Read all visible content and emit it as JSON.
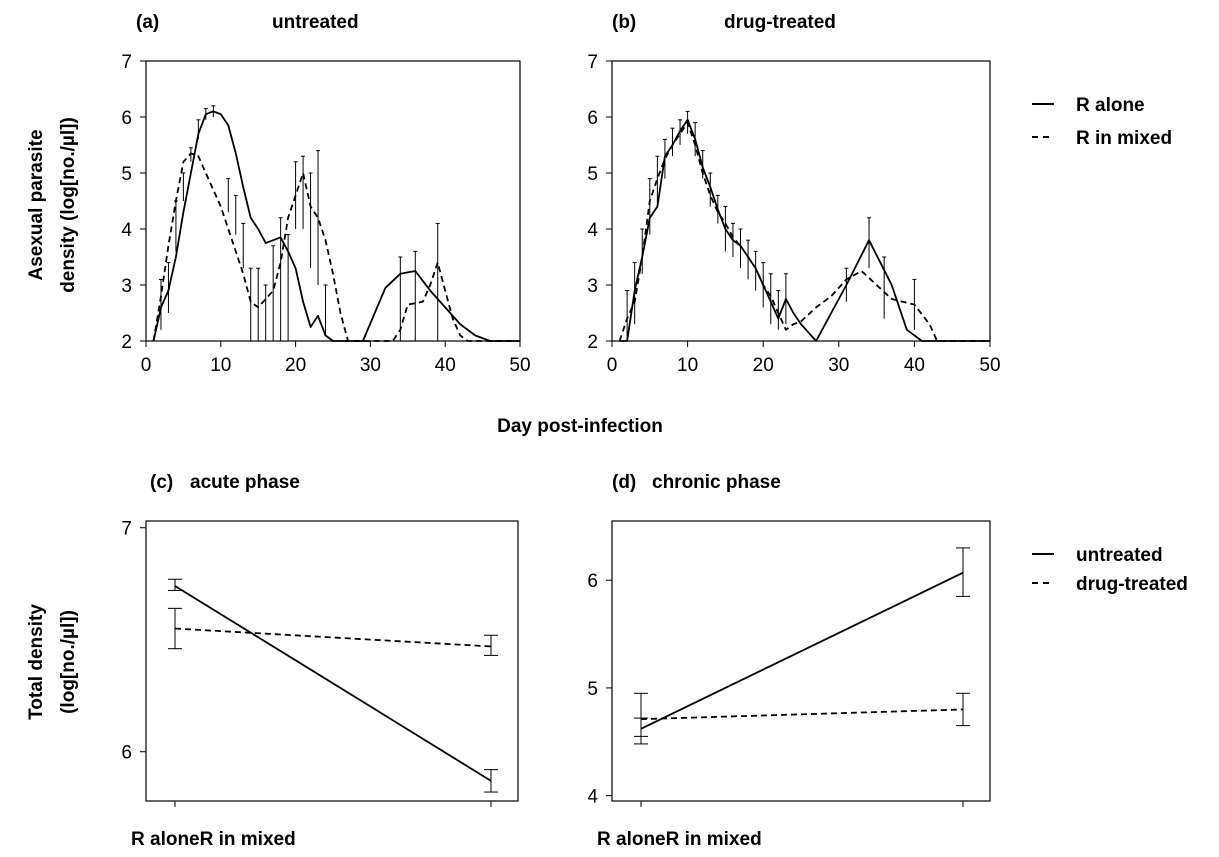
{
  "shared": {
    "top_xlabel": "Day post-infection",
    "top_ylabel_line1": "Asexual parasite",
    "top_ylabel_line2": "density (log[no./µl])",
    "bottom_ylabel_line1": "Total density",
    "bottom_ylabel_line2": "(log[no./µl])"
  },
  "legends": {
    "top": [
      {
        "label": "R alone",
        "style": "solid"
      },
      {
        "label": "R in mixed",
        "style": "dashed"
      }
    ],
    "bottom": [
      {
        "label": "untreated",
        "style": "solid"
      },
      {
        "label": "drug-treated",
        "style": "dashed"
      }
    ]
  },
  "chart_data": [
    {
      "id": "a",
      "type": "line",
      "panel_label": "(a)",
      "title": "untreated",
      "xlim": [
        0,
        50
      ],
      "ylim": [
        2,
        7
      ],
      "xticks": [
        0,
        10,
        20,
        30,
        40,
        50
      ],
      "yticks": [
        2,
        3,
        4,
        5,
        6,
        7
      ],
      "series": [
        {
          "name": "R alone",
          "style": "solid",
          "points": [
            [
              1,
              2.0
            ],
            [
              2,
              2.6
            ],
            [
              3,
              2.9
            ],
            [
              4,
              3.5
            ],
            [
              5,
              4.3
            ],
            [
              6,
              5.0
            ],
            [
              7,
              5.7
            ],
            [
              8,
              6.05
            ],
            [
              9,
              6.1
            ],
            [
              10,
              6.05
            ],
            [
              11,
              5.85
            ],
            [
              12,
              5.35
            ],
            [
              13,
              4.75
            ],
            [
              14,
              4.2
            ],
            [
              15,
              4.0
            ],
            [
              16,
              3.75
            ],
            [
              17,
              3.8
            ],
            [
              18,
              3.85
            ],
            [
              19,
              3.6
            ],
            [
              20,
              3.3
            ],
            [
              21,
              2.7
            ],
            [
              22,
              2.25
            ],
            [
              23,
              2.45
            ],
            [
              24,
              2.1
            ],
            [
              25,
              2.0
            ],
            [
              29,
              2.0
            ],
            [
              32,
              2.95
            ],
            [
              34,
              3.2
            ],
            [
              36,
              3.25
            ],
            [
              38,
              2.9
            ],
            [
              40,
              2.6
            ],
            [
              42,
              2.3
            ],
            [
              44,
              2.1
            ],
            [
              46,
              2.0
            ],
            [
              50,
              2.0
            ]
          ]
        },
        {
          "name": "R in mixed",
          "style": "dashed",
          "points": [
            [
              1,
              2.0
            ],
            [
              2,
              2.8
            ],
            [
              3,
              3.7
            ],
            [
              4,
              4.5
            ],
            [
              5,
              5.2
            ],
            [
              6,
              5.35
            ],
            [
              7,
              5.3
            ],
            [
              8,
              5.0
            ],
            [
              9,
              4.7
            ],
            [
              10,
              4.4
            ],
            [
              11,
              4.0
            ],
            [
              12,
              3.6
            ],
            [
              13,
              3.2
            ],
            [
              14,
              2.7
            ],
            [
              15,
              2.6
            ],
            [
              16,
              2.75
            ],
            [
              17,
              2.9
            ],
            [
              18,
              3.4
            ],
            [
              19,
              4.2
            ],
            [
              20,
              4.6
            ],
            [
              21,
              5.0
            ],
            [
              22,
              4.4
            ],
            [
              23,
              4.2
            ],
            [
              24,
              3.8
            ],
            [
              25,
              3.2
            ],
            [
              26,
              2.5
            ],
            [
              27,
              2.0
            ],
            [
              33,
              2.0
            ],
            [
              34,
              2.2
            ],
            [
              35,
              2.65
            ],
            [
              37,
              2.7
            ],
            [
              38,
              3.0
            ],
            [
              39,
              3.4
            ],
            [
              40,
              2.9
            ],
            [
              41,
              2.4
            ],
            [
              42,
              2.1
            ],
            [
              43,
              2.0
            ],
            [
              50,
              2.0
            ]
          ]
        }
      ],
      "error_bars": [
        [
          2,
          2.2,
          3.1
        ],
        [
          3,
          2.5,
          3.4
        ],
        [
          4,
          3.6,
          4.5
        ],
        [
          5,
          4.5,
          5.0
        ],
        [
          6,
          5.2,
          5.45
        ],
        [
          7,
          5.6,
          5.95
        ],
        [
          8,
          5.95,
          6.15
        ],
        [
          9,
          6.0,
          6.2
        ],
        [
          11,
          4.3,
          4.9
        ],
        [
          12,
          3.9,
          4.6
        ],
        [
          13,
          3.3,
          4.1
        ],
        [
          14,
          2.0,
          3.3
        ],
        [
          15,
          2.0,
          3.3
        ],
        [
          16,
          2.0,
          3.0
        ],
        [
          17,
          2.0,
          3.7
        ],
        [
          18,
          2.0,
          4.2
        ],
        [
          19,
          2.0,
          3.9
        ],
        [
          20,
          4.0,
          5.2
        ],
        [
          21,
          4.0,
          5.3
        ],
        [
          22,
          3.3,
          5.0
        ],
        [
          23,
          3.0,
          5.4
        ],
        [
          24,
          2.1,
          3.0
        ],
        [
          34,
          2.0,
          3.5
        ],
        [
          36,
          2.0,
          3.6
        ],
        [
          39,
          2.0,
          4.1
        ]
      ]
    },
    {
      "id": "b",
      "type": "line",
      "panel_label": "(b)",
      "title": "drug-treated",
      "xlim": [
        0,
        50
      ],
      "ylim": [
        2,
        7
      ],
      "xticks": [
        0,
        10,
        20,
        30,
        40,
        50
      ],
      "yticks": [
        2,
        3,
        4,
        5,
        6,
        7
      ],
      "series": [
        {
          "name": "R alone",
          "style": "solid",
          "points": [
            [
              1,
              2.0
            ],
            [
              2,
              2.0
            ],
            [
              3,
              2.9
            ],
            [
              4,
              3.5
            ],
            [
              5,
              4.2
            ],
            [
              6,
              4.4
            ],
            [
              7,
              5.3
            ],
            [
              8,
              5.5
            ],
            [
              9,
              5.75
            ],
            [
              10,
              5.95
            ],
            [
              11,
              5.6
            ],
            [
              12,
              5.1
            ],
            [
              13,
              4.75
            ],
            [
              14,
              4.35
            ],
            [
              15,
              4.0
            ],
            [
              16,
              3.8
            ],
            [
              17,
              3.7
            ],
            [
              18,
              3.5
            ],
            [
              19,
              3.3
            ],
            [
              20,
              3.0
            ],
            [
              21,
              2.7
            ],
            [
              22,
              2.4
            ],
            [
              23,
              2.75
            ],
            [
              24,
              2.5
            ],
            [
              25,
              2.3
            ],
            [
              27,
              2.0
            ],
            [
              29,
              2.5
            ],
            [
              31,
              3.0
            ],
            [
              34,
              3.8
            ],
            [
              37,
              3.0
            ],
            [
              39,
              2.2
            ],
            [
              41,
              2.0
            ],
            [
              50,
              2.0
            ]
          ]
        },
        {
          "name": "R in mixed",
          "style": "dashed",
          "points": [
            [
              1,
              2.0
            ],
            [
              2,
              2.4
            ],
            [
              3,
              2.7
            ],
            [
              4,
              3.5
            ],
            [
              5,
              4.5
            ],
            [
              6,
              4.9
            ],
            [
              7,
              5.25
            ],
            [
              8,
              5.5
            ],
            [
              9,
              5.7
            ],
            [
              10,
              5.9
            ],
            [
              11,
              5.5
            ],
            [
              12,
              5.0
            ],
            [
              13,
              4.6
            ],
            [
              14,
              4.3
            ],
            [
              15,
              4.1
            ],
            [
              16,
              3.85
            ],
            [
              17,
              3.7
            ],
            [
              18,
              3.5
            ],
            [
              19,
              3.3
            ],
            [
              20,
              3.0
            ],
            [
              21,
              2.8
            ],
            [
              22,
              2.5
            ],
            [
              23,
              2.2
            ],
            [
              24,
              2.3
            ],
            [
              25,
              2.35
            ],
            [
              27,
              2.6
            ],
            [
              29,
              2.8
            ],
            [
              31,
              3.1
            ],
            [
              33,
              3.25
            ],
            [
              35,
              3.0
            ],
            [
              37,
              2.75
            ],
            [
              40,
              2.65
            ],
            [
              42,
              2.3
            ],
            [
              43,
              2.0
            ],
            [
              50,
              2.0
            ]
          ]
        }
      ],
      "error_bars": [
        [
          2,
          2.0,
          2.9
        ],
        [
          3,
          2.3,
          3.4
        ],
        [
          4,
          3.2,
          4.0
        ],
        [
          5,
          3.9,
          4.9
        ],
        [
          6,
          4.4,
          5.3
        ],
        [
          7,
          4.9,
          5.6
        ],
        [
          8,
          5.3,
          5.8
        ],
        [
          9,
          5.5,
          5.95
        ],
        [
          10,
          5.7,
          6.1
        ],
        [
          11,
          5.3,
          5.9
        ],
        [
          12,
          4.9,
          5.4
        ],
        [
          13,
          4.4,
          5.0
        ],
        [
          14,
          4.1,
          4.6
        ],
        [
          15,
          3.6,
          4.4
        ],
        [
          16,
          3.5,
          4.1
        ],
        [
          17,
          3.3,
          4.0
        ],
        [
          18,
          3.1,
          3.8
        ],
        [
          19,
          2.9,
          3.6
        ],
        [
          20,
          2.6,
          3.4
        ],
        [
          21,
          2.3,
          3.2
        ],
        [
          22,
          2.2,
          2.9
        ],
        [
          23,
          2.3,
          3.2
        ],
        [
          31,
          2.7,
          3.3
        ],
        [
          34,
          3.3,
          4.2
        ],
        [
          36,
          2.4,
          3.5
        ],
        [
          40,
          2.2,
          3.1
        ]
      ]
    },
    {
      "id": "c",
      "type": "line",
      "panel_label": "(c)",
      "title": "acute phase",
      "categories": [
        "R alone",
        "R in mixed"
      ],
      "ylim": [
        5.78,
        7.03
      ],
      "yticks": [
        6,
        7
      ],
      "series": [
        {
          "name": "untreated",
          "style": "solid",
          "values": [
            6.74,
            5.87
          ],
          "errors": [
            [
              6.72,
              6.77
            ],
            [
              5.82,
              5.92
            ]
          ]
        },
        {
          "name": "drug-treated",
          "style": "dashed",
          "values": [
            6.55,
            6.47
          ],
          "errors": [
            [
              6.46,
              6.64
            ],
            [
              6.43,
              6.52
            ]
          ]
        }
      ]
    },
    {
      "id": "d",
      "type": "line",
      "panel_label": "(d)",
      "title": "chronic phase",
      "categories": [
        "R alone",
        "R in mixed"
      ],
      "ylim": [
        3.95,
        6.55
      ],
      "yticks": [
        4,
        5,
        6
      ],
      "series": [
        {
          "name": "untreated",
          "style": "solid",
          "values": [
            4.62,
            6.07
          ],
          "errors": [
            [
              4.48,
              4.95
            ],
            [
              5.85,
              6.3
            ]
          ]
        },
        {
          "name": "drug-treated",
          "style": "dashed",
          "values": [
            4.71,
            4.8
          ],
          "errors": [
            [
              4.55,
              4.72
            ],
            [
              4.65,
              4.95
            ]
          ]
        }
      ]
    }
  ]
}
